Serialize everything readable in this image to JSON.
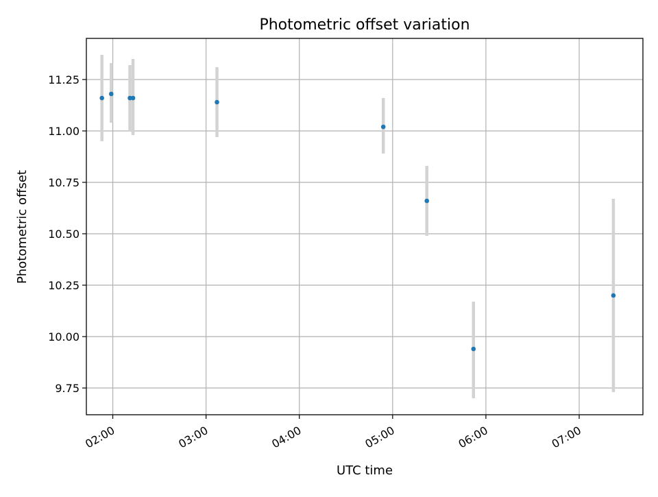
{
  "chart_data": {
    "type": "scatter",
    "title": "Photometric offset variation",
    "xlabel": "UTC time",
    "ylabel": "Photometric offset",
    "x_axis_kind": "time",
    "xlim": [
      "01:43",
      "07:41"
    ],
    "ylim": [
      9.62,
      11.45
    ],
    "x_ticks": [
      "02:00",
      "03:00",
      "04:00",
      "05:00",
      "06:00",
      "07:00"
    ],
    "y_ticks": [
      9.75,
      10.0,
      10.25,
      10.5,
      10.75,
      11.0,
      11.25
    ],
    "y_tick_labels": [
      "9.75",
      "10.00",
      "10.25",
      "10.50",
      "10.75",
      "11.00",
      "11.25"
    ],
    "grid": true,
    "series": [
      {
        "points": [
          {
            "x": "01:53",
            "y": 11.16,
            "err_low": 10.95,
            "err_high": 11.37
          },
          {
            "x": "01:59",
            "y": 11.18,
            "err_low": 11.04,
            "err_high": 11.33
          },
          {
            "x": "02:11",
            "y": 11.16,
            "err_low": 11.0,
            "err_high": 11.32
          },
          {
            "x": "02:13",
            "y": 11.16,
            "err_low": 10.98,
            "err_high": 11.35
          },
          {
            "x": "03:07",
            "y": 11.14,
            "err_low": 10.97,
            "err_high": 11.31
          },
          {
            "x": "04:54",
            "y": 11.02,
            "err_low": 10.89,
            "err_high": 11.16
          },
          {
            "x": "05:22",
            "y": 10.66,
            "err_low": 10.49,
            "err_high": 10.83
          },
          {
            "x": "05:52",
            "y": 9.94,
            "err_low": 9.7,
            "err_high": 10.17
          },
          {
            "x": "07:22",
            "y": 10.2,
            "err_low": 9.73,
            "err_high": 10.67
          }
        ]
      }
    ],
    "colors": {
      "marker": "#1f77b4",
      "errorbar": "#d3d3d3",
      "grid": "#b0b0b0",
      "axes": "#000000"
    }
  }
}
